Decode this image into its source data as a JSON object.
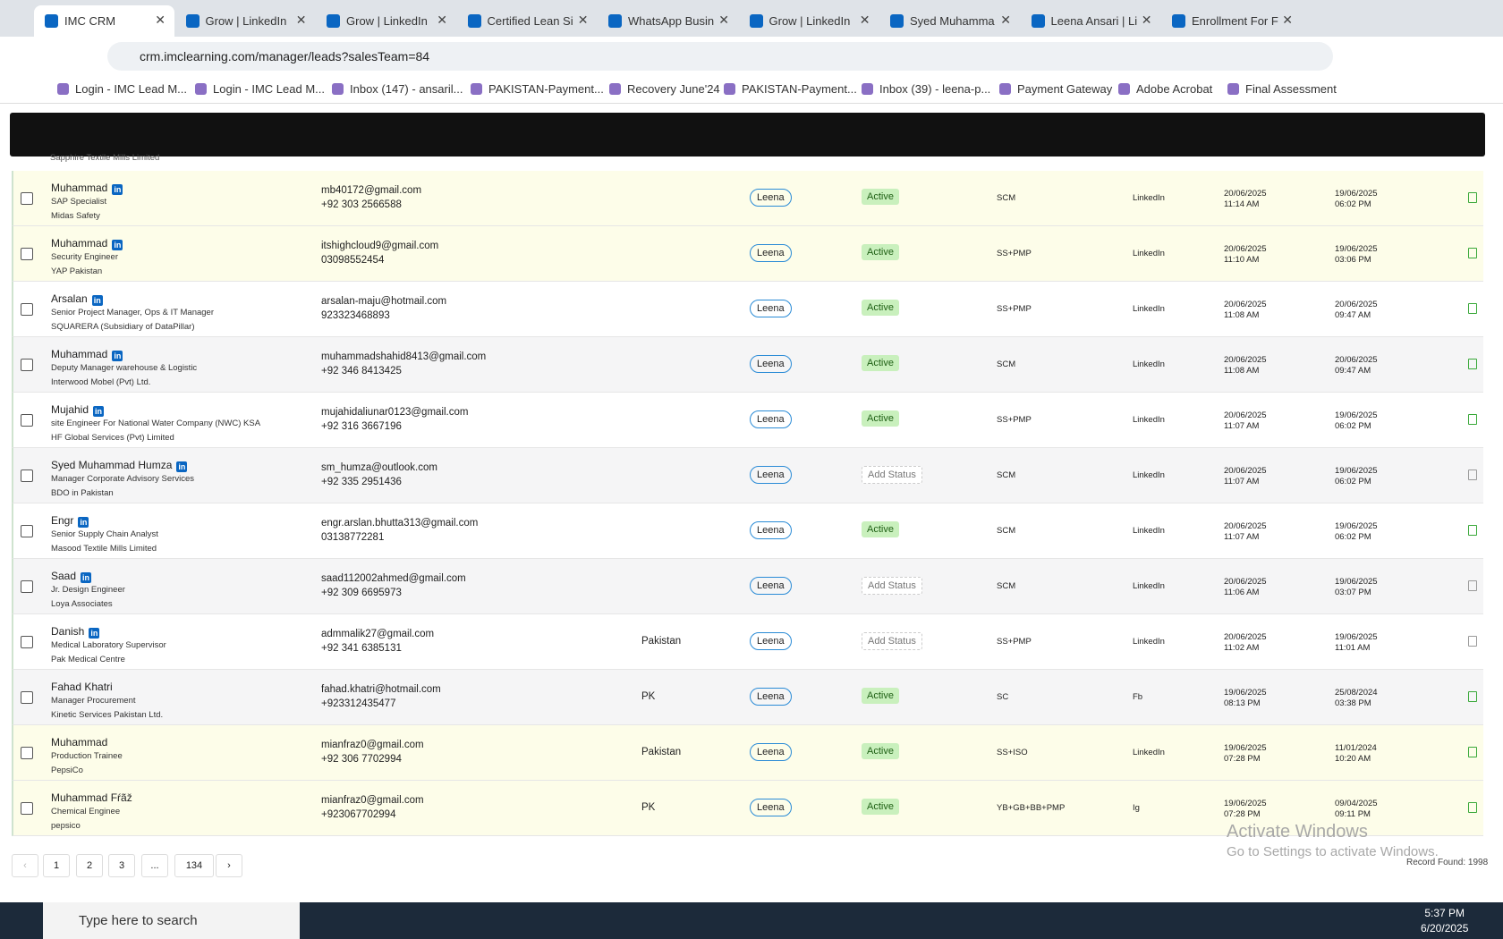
{
  "browser": {
    "tabs": [
      "IMC CRM",
      "Grow | LinkedIn",
      "Grow | LinkedIn",
      "Certified Lean Si",
      "WhatsApp Busin",
      "Grow | LinkedIn",
      "Syed Muhamma",
      "Leena Ansari | Li",
      "Enrollment For F"
    ],
    "url": "crm.imclearning.com/manager/leads?salesTeam=84",
    "bookmarks": [
      "Login - IMC Lead M...",
      "Login - IMC Lead M...",
      "Inbox (147) - ansaril...",
      "PAKISTAN-Payment...",
      "Recovery June'24",
      "PAKISTAN-Payment...",
      "Inbox (39) - leena-p...",
      "Payment Gateway",
      "Adobe Acrobat",
      "Final Assessment"
    ]
  },
  "table": {
    "partial_row_company": "Sapphire Textile Mills Limited",
    "rows": [
      {
        "name": "Muhammad",
        "linkedin_badge": true,
        "title": "SAP Specialist",
        "company": "Midas Safety",
        "email": "mb40172@gmail.com",
        "phone": "+92 303 2566588",
        "owner": "Leena",
        "status": "Active",
        "status_active": true,
        "course": "SCM",
        "source": "LinkedIn",
        "created_date": "20/06/2025",
        "created_time": "11:14 AM",
        "updated_date": "19/06/2025",
        "updated_time": "06:02 PM"
      },
      {
        "name": "Muhammad",
        "linkedin_badge": true,
        "title": "Security Engineer",
        "company": "YAP Pakistan",
        "email": "itshighcloud9@gmail.com",
        "phone": "03098552454",
        "owner": "Leena",
        "status": "Active",
        "status_active": true,
        "course": "SS+PMP",
        "source": "LinkedIn",
        "created_date": "20/06/2025",
        "created_time": "11:10 AM",
        "updated_date": "19/06/2025",
        "updated_time": "03:06 PM"
      },
      {
        "name": "Arsalan",
        "linkedin_badge": true,
        "title": "Senior Project Manager, Ops & IT Manager",
        "company": "SQUARERA (Subsidiary of DataPillar)",
        "email": "arsalan-maju@hotmail.com",
        "phone": "923323468893",
        "owner": "Leena",
        "status": "Active",
        "status_active": true,
        "course": "SS+PMP",
        "source": "LinkedIn",
        "created_date": "20/06/2025",
        "created_time": "11:08 AM",
        "updated_date": "20/06/2025",
        "updated_time": "09:47 AM"
      },
      {
        "name": "Muhammad",
        "linkedin_badge": true,
        "title": "Deputy Manager warehouse & Logistic",
        "company": "Interwood Mobel (Pvt) Ltd.",
        "email": "muhammadshahid8413@gmail.com",
        "phone": "+92 346 8413425",
        "owner": "Leena",
        "status": "Active",
        "status_active": true,
        "course": "SCM",
        "source": "LinkedIn",
        "created_date": "20/06/2025",
        "created_time": "11:08 AM",
        "updated_date": "20/06/2025",
        "updated_time": "09:47 AM"
      },
      {
        "name": "Mujahid",
        "linkedin_badge": true,
        "title": "site Engineer For National Water Company (NWC) KSA",
        "company": "HF Global Services (Pvt) Limited",
        "email": "mujahidaliunar0123@gmail.com",
        "phone": "+92 316 3667196",
        "owner": "Leena",
        "status": "Active",
        "status_active": true,
        "course": "SS+PMP",
        "source": "LinkedIn",
        "created_date": "20/06/2025",
        "created_time": "11:07 AM",
        "updated_date": "19/06/2025",
        "updated_time": "06:02 PM"
      },
      {
        "name": "Syed Muhammad Humza",
        "linkedin_badge": true,
        "title": "Manager Corporate Advisory Services",
        "company": "BDO in Pakistan",
        "email": "sm_humza@outlook.com",
        "phone": "+92 335 2951436",
        "owner": "Leena",
        "status": "Add Status",
        "status_active": false,
        "course": "SCM",
        "source": "LinkedIn",
        "created_date": "20/06/2025",
        "created_time": "11:07 AM",
        "updated_date": "19/06/2025",
        "updated_time": "06:02 PM"
      },
      {
        "name": "Engr",
        "linkedin_badge": true,
        "title": "Senior Supply Chain Analyst",
        "company": "Masood Textile Mills Limited",
        "email": "engr.arslan.bhutta313@gmail.com",
        "phone": "03138772281",
        "owner": "Leena",
        "status": "Active",
        "status_active": true,
        "course": "SCM",
        "source": "LinkedIn",
        "created_date": "20/06/2025",
        "created_time": "11:07 AM",
        "updated_date": "19/06/2025",
        "updated_time": "06:02 PM"
      },
      {
        "name": "Saad",
        "linkedin_badge": true,
        "title": "Jr. Design Engineer",
        "company": "Loya Associates",
        "email": "saad112002ahmed@gmail.com",
        "phone": "+92 309 6695973",
        "owner": "Leena",
        "status": "Add Status",
        "status_active": false,
        "course": "SCM",
        "source": "LinkedIn",
        "created_date": "20/06/2025",
        "created_time": "11:06 AM",
        "updated_date": "19/06/2025",
        "updated_time": "03:07 PM"
      },
      {
        "name": "Danish",
        "linkedin_badge": true,
        "title": "Medical Laboratory Supervisor",
        "company": "Pak Medical Centre",
        "email": "admmalik27@gmail.com",
        "phone": "+92 341 6385131",
        "country": "Pakistan",
        "owner": "Leena",
        "status": "Add Status",
        "status_active": false,
        "course": "SS+PMP",
        "source": "LinkedIn",
        "created_date": "20/06/2025",
        "created_time": "11:02 AM",
        "updated_date": "19/06/2025",
        "updated_time": "11:01 AM"
      },
      {
        "name": "Fahad Khatri",
        "linkedin_badge": false,
        "title": "Manager Procurement",
        "company": "Kinetic Services Pakistan Ltd.",
        "email": "fahad.khatri@hotmail.com",
        "phone": "+923312435477",
        "country": "PK",
        "owner": "Leena",
        "status": "Active",
        "status_active": true,
        "course": "SC",
        "source": "Fb",
        "created_date": "19/06/2025",
        "created_time": "08:13 PM",
        "updated_date": "25/08/2024",
        "updated_time": "03:38 PM"
      },
      {
        "name": "Muhammad",
        "linkedin_badge": false,
        "title": "Production Trainee",
        "company": "PepsiCo",
        "email": "mianfraz0@gmail.com",
        "phone": "+92 306 7702994",
        "country": "Pakistan",
        "owner": "Leena",
        "status": "Active",
        "status_active": true,
        "course": "SS+ISO",
        "source": "LinkedIn",
        "created_date": "19/06/2025",
        "created_time": "07:28 PM",
        "updated_date": "11/01/2024",
        "updated_time": "10:20 AM"
      },
      {
        "name": "Muhammad Fŕãž",
        "linkedin_badge": false,
        "title": "Chemical Enginee",
        "company": "pepsico",
        "email": "mianfraz0@gmail.com",
        "phone": "+923067702994",
        "country": "PK",
        "owner": "Leena",
        "status": "Active",
        "status_active": true,
        "course": "YB+GB+BB+PMP",
        "source": "Ig",
        "created_date": "19/06/2025",
        "created_time": "07:28 PM",
        "updated_date": "09/04/2025",
        "updated_time": "09:11 PM"
      }
    ]
  },
  "pagination": {
    "pages": [
      "1",
      "2",
      "3",
      "...",
      "134"
    ],
    "record_found": "Record Found: 1998"
  },
  "watermark": {
    "title": "Activate Windows",
    "subtitle": "Go to Settings to activate Windows."
  },
  "taskbar": {
    "search": "Type here to search",
    "time": "5:37 PM",
    "date": "6/20/2025"
  }
}
